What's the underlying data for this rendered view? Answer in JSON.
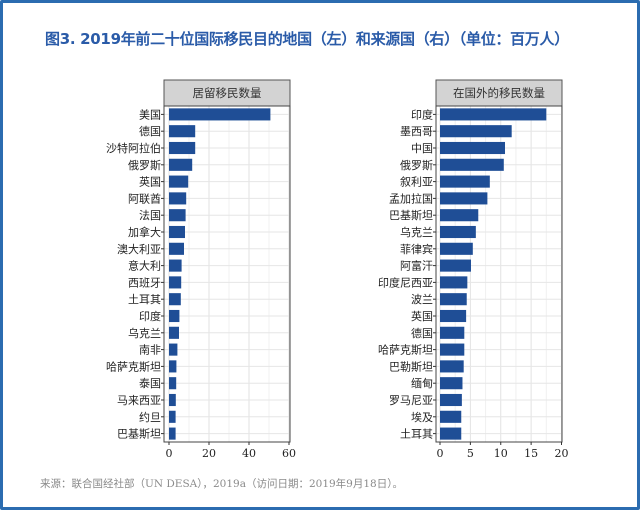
{
  "title": "图3. 2019年前二十位国际移民目的地国（左）和来源国（右）（单位：百万人）",
  "source": "来源：联合国经社部（UN DESA），2019a（访问日期：2019年9月18日）。",
  "colors": {
    "bar": "#1f4e96",
    "header_bg": "#d3d3d3",
    "title": "#2a5ba8",
    "frame": "#2b6cb0"
  },
  "chart_data": [
    {
      "type": "bar",
      "orientation": "horizontal",
      "title": "居留移民数量",
      "categories": [
        "美国",
        "德国",
        "沙特阿拉伯",
        "俄罗斯",
        "英国",
        "阿联酋",
        "法国",
        "加拿大",
        "澳大利亚",
        "意大利",
        "西班牙",
        "土耳其",
        "印度",
        "乌克兰",
        "南非",
        "哈萨克斯坦",
        "泰国",
        "马来西亚",
        "约旦",
        "巴基斯坦"
      ],
      "values": [
        50.7,
        13.1,
        13.1,
        11.6,
        9.6,
        8.6,
        8.3,
        8.0,
        7.5,
        6.3,
        6.1,
        5.9,
        5.2,
        5.0,
        4.2,
        3.7,
        3.6,
        3.4,
        3.3,
        3.3
      ],
      "xlim": [
        0,
        60
      ],
      "xticks": [
        0,
        20,
        40,
        60
      ],
      "grid": true
    },
    {
      "type": "bar",
      "orientation": "horizontal",
      "title": "在国外的移民数量",
      "categories": [
        "印度",
        "墨西哥",
        "中国",
        "俄罗斯",
        "叙利亚",
        "孟加拉国",
        "巴基斯坦",
        "乌克兰",
        "菲律宾",
        "阿富汗",
        "印度尼西亚",
        "波兰",
        "英国",
        "德国",
        "哈萨克斯坦",
        "巴勒斯坦",
        "缅甸",
        "罗马尼亚",
        "埃及",
        "土耳其"
      ],
      "values": [
        17.5,
        11.8,
        10.7,
        10.5,
        8.2,
        7.8,
        6.3,
        5.9,
        5.4,
        5.1,
        4.5,
        4.4,
        4.3,
        4.0,
        4.0,
        3.9,
        3.7,
        3.6,
        3.5,
        3.5
      ],
      "xlim": [
        0,
        20
      ],
      "xticks": [
        0,
        5,
        10,
        15,
        20
      ],
      "grid": true
    }
  ]
}
